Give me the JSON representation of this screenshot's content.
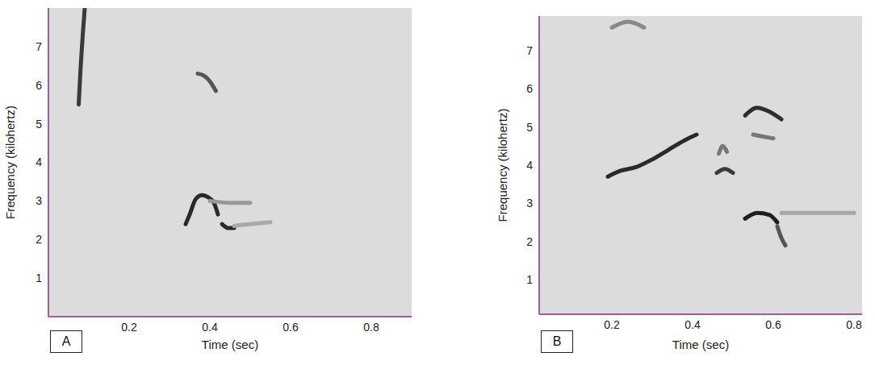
{
  "chart_data": [
    {
      "type": "line",
      "panel_label": "A",
      "x_label": "Time (sec)",
      "y_label": "Frequency (kilohertz)",
      "xlim": [
        0,
        0.9
      ],
      "xticks": [
        0.2,
        0.4,
        0.6,
        0.8
      ],
      "ylim": [
        0,
        8
      ],
      "yticks": [
        1,
        2,
        3,
        4,
        5,
        6,
        7
      ],
      "grid": false,
      "marker": "none",
      "series": [
        {
          "color": "#3a3a3a",
          "x": [
            0.075,
            0.08,
            0.085,
            0.09
          ],
          "values": [
            5.5,
            6.5,
            7.3,
            8
          ]
        },
        {
          "color": "#555555",
          "x": [
            0.37,
            0.385,
            0.4,
            0.415
          ],
          "values": [
            6.3,
            6.25,
            6.1,
            5.85
          ]
        },
        {
          "color": "#2a2a2a",
          "x": [
            0.34,
            0.35,
            0.365,
            0.38,
            0.395,
            0.41,
            0.42
          ],
          "values": [
            2.4,
            2.65,
            3.05,
            3.15,
            3.1,
            2.95,
            2.65
          ]
        },
        {
          "color": "#2a2a2a",
          "x": [
            0.43,
            0.445,
            0.46
          ],
          "values": [
            2.4,
            2.3,
            2.3
          ]
        },
        {
          "color": "#a8a8a8",
          "x": [
            0.46,
            0.5,
            0.55
          ],
          "values": [
            2.35,
            2.4,
            2.45
          ]
        },
        {
          "color": "#999999",
          "x": [
            0.4,
            0.45,
            0.5
          ],
          "values": [
            3.0,
            2.95,
            2.95
          ]
        }
      ]
    },
    {
      "type": "line",
      "panel_label": "B",
      "x_label": "Time (sec)",
      "y_label": "Frequency (kilohertz)",
      "xlim": [
        0.02,
        0.82
      ],
      "xticks": [
        0.2,
        0.4,
        0.6,
        0.8
      ],
      "ylim": [
        0.1,
        7.9
      ],
      "yticks": [
        1,
        2,
        3,
        4,
        5,
        6,
        7
      ],
      "grid": false,
      "marker": "none",
      "series": [
        {
          "color": "#2a2a2a",
          "x": [
            0.19,
            0.22,
            0.26,
            0.3,
            0.34,
            0.38,
            0.41
          ],
          "values": [
            3.7,
            3.85,
            3.95,
            4.15,
            4.4,
            4.65,
            4.8
          ]
        },
        {
          "color": "#888888",
          "x": [
            0.2,
            0.24,
            0.28
          ],
          "values": [
            7.6,
            7.75,
            7.6
          ]
        },
        {
          "color": "#3a3a3a",
          "x": [
            0.46,
            0.48,
            0.5
          ],
          "values": [
            3.8,
            3.9,
            3.8
          ]
        },
        {
          "color": "#777777",
          "x": [
            0.465,
            0.475,
            0.485
          ],
          "values": [
            4.3,
            4.5,
            4.35
          ]
        },
        {
          "color": "#2e2e2e",
          "x": [
            0.53,
            0.56,
            0.59,
            0.62
          ],
          "values": [
            5.3,
            5.5,
            5.4,
            5.2
          ]
        },
        {
          "color": "#777777",
          "x": [
            0.55,
            0.575,
            0.6
          ],
          "values": [
            4.8,
            4.75,
            4.7
          ]
        },
        {
          "color": "#1e1e1e",
          "x": [
            0.53,
            0.56,
            0.59,
            0.61
          ],
          "values": [
            2.6,
            2.75,
            2.7,
            2.5
          ]
        },
        {
          "color": "#555555",
          "x": [
            0.61,
            0.62,
            0.63
          ],
          "values": [
            2.4,
            2.1,
            1.9
          ]
        },
        {
          "color": "#a8a8a8",
          "x": [
            0.62,
            0.7,
            0.8
          ],
          "values": [
            2.75,
            2.75,
            2.75
          ]
        }
      ]
    }
  ]
}
